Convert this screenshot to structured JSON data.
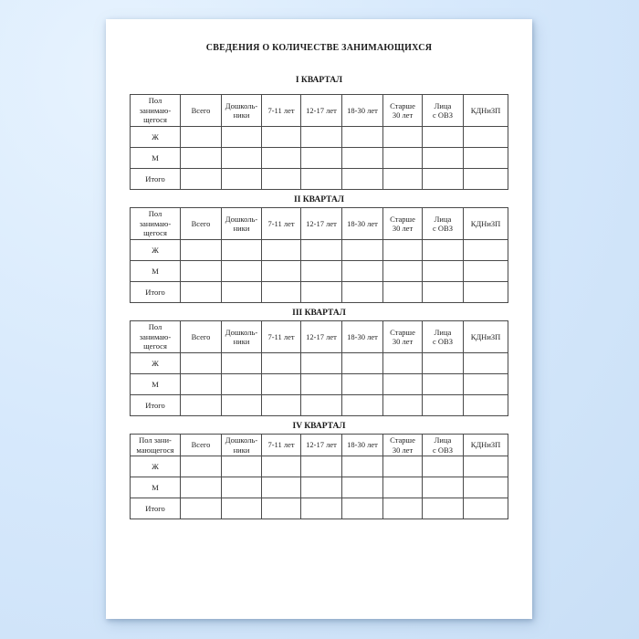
{
  "document": {
    "title": "СВЕДЕНИЯ О КОЛИЧЕСТВЕ ЗАНИМАЮЩИХСЯ"
  },
  "colors": {
    "background_blue": "#d7e9fc",
    "page_white": "#ffffff",
    "table_border": "#4a4a4a",
    "text": "#1f1f1f"
  },
  "quarters": [
    {
      "heading": "I КВАРТАЛ",
      "columns": [
        "Пол\nзанимаю-\nщегося",
        "Всего",
        "Дошколь-\nники",
        "7-11 лет",
        "12-17 лет",
        "18-30 лет",
        "Старше\n30 лет",
        "Лица\nс ОВЗ",
        "КДНиЗП"
      ],
      "rows": [
        {
          "label": "Ж",
          "values": [
            "",
            "",
            "",
            "",
            "",
            "",
            "",
            ""
          ]
        },
        {
          "label": "М",
          "values": [
            "",
            "",
            "",
            "",
            "",
            "",
            "",
            ""
          ]
        },
        {
          "label": "Итого",
          "values": [
            "",
            "",
            "",
            "",
            "",
            "",
            "",
            ""
          ]
        }
      ]
    },
    {
      "heading": "II КВАРТАЛ",
      "columns": [
        "Пол\nзанимаю-\nщегося",
        "Всего",
        "Дошколь-\nники",
        "7-11 лет",
        "12-17 лет",
        "18-30 лет",
        "Старше\n30 лет",
        "Лица\nс ОВЗ",
        "КДНиЗП"
      ],
      "rows": [
        {
          "label": "Ж",
          "values": [
            "",
            "",
            "",
            "",
            "",
            "",
            "",
            ""
          ]
        },
        {
          "label": "М",
          "values": [
            "",
            "",
            "",
            "",
            "",
            "",
            "",
            ""
          ]
        },
        {
          "label": "Итого",
          "values": [
            "",
            "",
            "",
            "",
            "",
            "",
            "",
            ""
          ]
        }
      ]
    },
    {
      "heading": "III КВАРТАЛ",
      "columns": [
        "Пол\nзанимаю-\nщегося",
        "Всего",
        "Дошколь-\nники",
        "7-11 лет",
        "12-17 лет",
        "18-30 лет",
        "Старше\n30 лет",
        "Лица\nс ОВЗ",
        "КДНиЗП"
      ],
      "rows": [
        {
          "label": "Ж",
          "values": [
            "",
            "",
            "",
            "",
            "",
            "",
            "",
            ""
          ]
        },
        {
          "label": "М",
          "values": [
            "",
            "",
            "",
            "",
            "",
            "",
            "",
            ""
          ]
        },
        {
          "label": "Итого",
          "values": [
            "",
            "",
            "",
            "",
            "",
            "",
            "",
            ""
          ]
        }
      ]
    },
    {
      "heading": "IV КВАРТАЛ",
      "columns": [
        "Пол зани-\nмающегося",
        "Всего",
        "Дошколь-\nники",
        "7-11 лет",
        "12-17 лет",
        "18-30 лет",
        "Старше\n30 лет",
        "Лица\nс ОВЗ",
        "КДНиЗП"
      ],
      "rows": [
        {
          "label": "Ж",
          "values": [
            "",
            "",
            "",
            "",
            "",
            "",
            "",
            ""
          ]
        },
        {
          "label": "М",
          "values": [
            "",
            "",
            "",
            "",
            "",
            "",
            "",
            ""
          ]
        },
        {
          "label": "Итого",
          "values": [
            "",
            "",
            "",
            "",
            "",
            "",
            "",
            ""
          ]
        }
      ]
    }
  ]
}
